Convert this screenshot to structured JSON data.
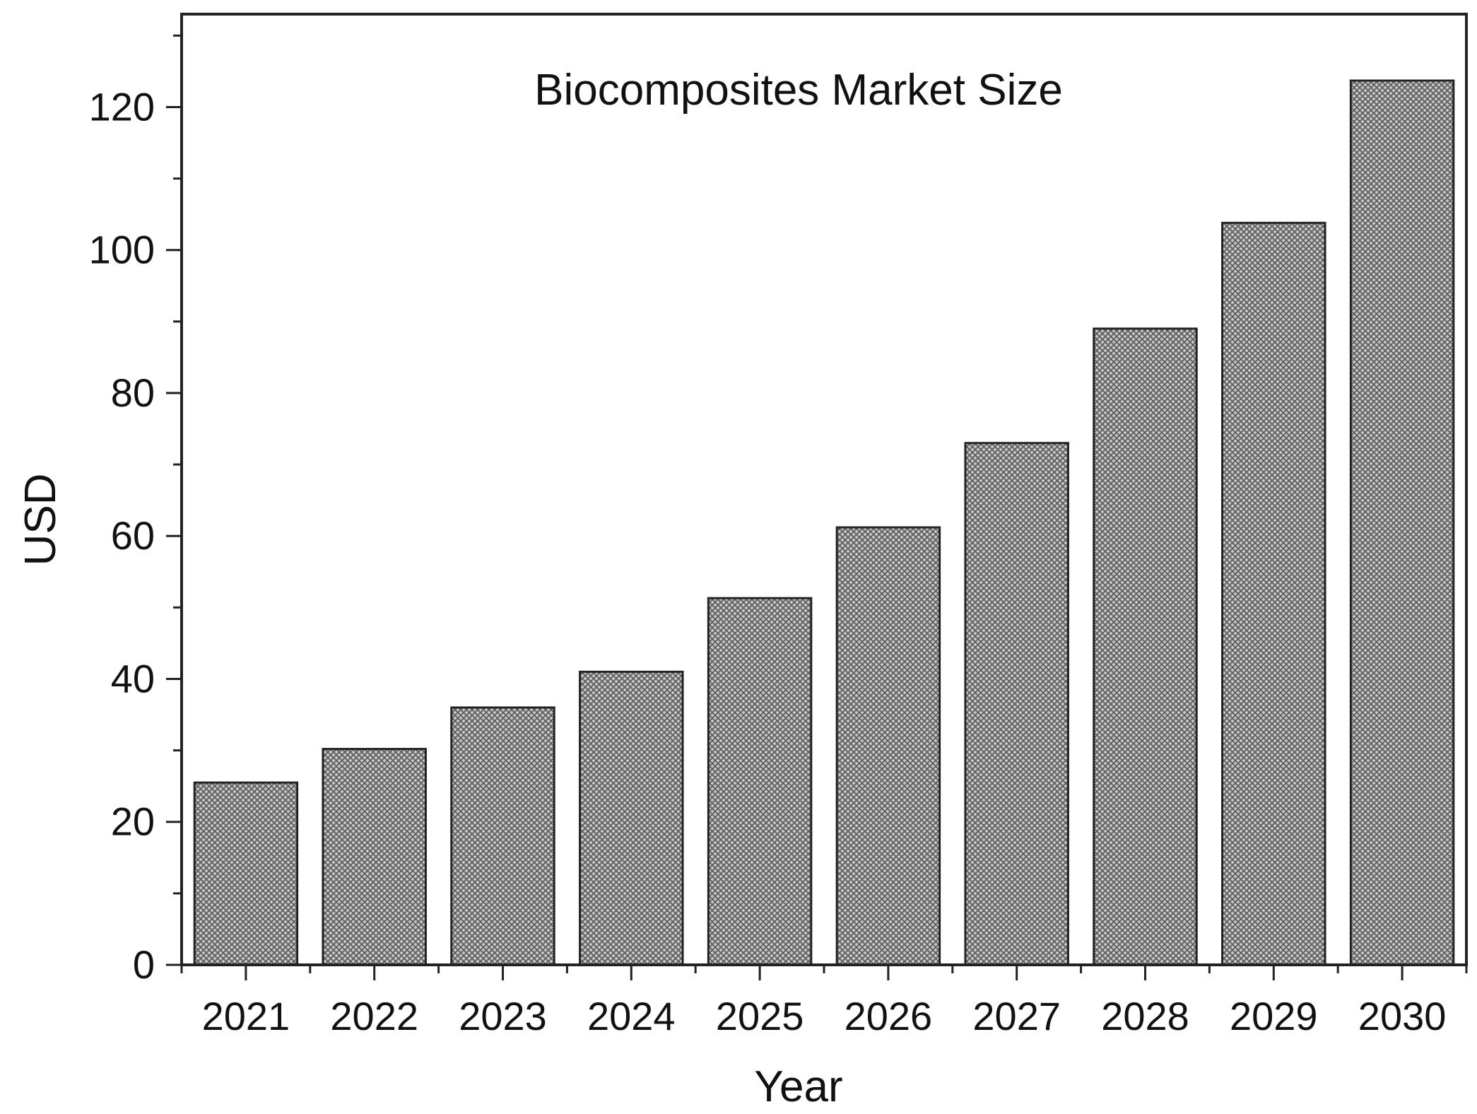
{
  "chart_data": {
    "type": "bar",
    "title": "Biocomposites Market Size",
    "xlabel": "Year",
    "ylabel": "USD",
    "categories": [
      "2021",
      "2022",
      "2023",
      "2024",
      "2025",
      "2026",
      "2027",
      "2028",
      "2029",
      "2030"
    ],
    "values": [
      25.5,
      30.2,
      36,
      41,
      51.3,
      61.2,
      73,
      89,
      103.8,
      123.7
    ],
    "ylim": [
      0,
      133
    ],
    "yticks": [
      "0",
      "20",
      "40",
      "60",
      "80",
      "100",
      "120"
    ],
    "grid": false,
    "legend": "none",
    "bar_fill": "crosshatch",
    "colors": {
      "bar_fill": "#c4c4c4",
      "hatch": "#555555",
      "outline": "#222222",
      "axis": "#222222"
    }
  }
}
